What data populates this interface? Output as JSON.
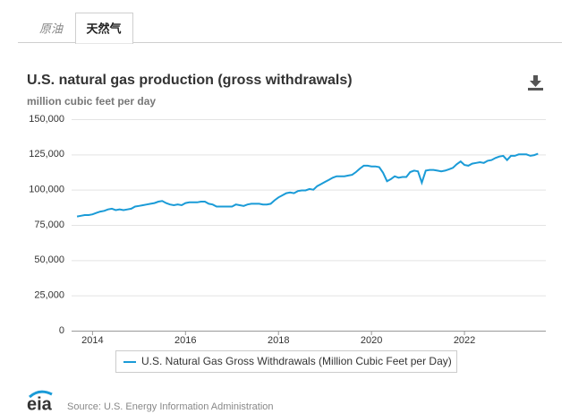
{
  "tabs": [
    "原油",
    "天然气"
  ],
  "logo": "eia",
  "chart_data": {
    "type": "line",
    "title": "U.S. natural gas production (gross withdrawals)",
    "subtitle": "million cubic feet per day",
    "source": "Source: U.S. Energy Information Administration",
    "x": [
      2013.667,
      2013.75,
      2013.833,
      2013.917,
      2014,
      2014.083,
      2014.167,
      2014.25,
      2014.333,
      2014.417,
      2014.5,
      2014.583,
      2014.667,
      2014.75,
      2014.833,
      2014.917,
      2015,
      2015.083,
      2015.167,
      2015.25,
      2015.333,
      2015.417,
      2015.5,
      2015.583,
      2015.667,
      2015.75,
      2015.833,
      2015.917,
      2016,
      2016.083,
      2016.167,
      2016.25,
      2016.333,
      2016.417,
      2016.5,
      2016.583,
      2016.667,
      2016.75,
      2016.833,
      2016.917,
      2017,
      2017.083,
      2017.167,
      2017.25,
      2017.333,
      2017.417,
      2017.5,
      2017.583,
      2017.667,
      2017.75,
      2017.833,
      2017.917,
      2018,
      2018.083,
      2018.167,
      2018.25,
      2018.333,
      2018.417,
      2018.5,
      2018.583,
      2018.667,
      2018.75,
      2018.833,
      2018.917,
      2019,
      2019.083,
      2019.167,
      2019.25,
      2019.333,
      2019.417,
      2019.5,
      2019.583,
      2019.667,
      2019.75,
      2019.833,
      2019.917,
      2020,
      2020.083,
      2020.167,
      2020.25,
      2020.333,
      2020.417,
      2020.5,
      2020.583,
      2020.667,
      2020.75,
      2020.833,
      2020.917,
      2021,
      2021.083,
      2021.167,
      2021.25,
      2021.333,
      2021.417,
      2021.5,
      2021.583,
      2021.667,
      2021.75,
      2021.833,
      2021.917,
      2022,
      2022.083,
      2022.167,
      2022.25,
      2022.333,
      2022.417,
      2022.5,
      2022.583,
      2022.667,
      2022.75,
      2022.833,
      2022.917,
      2023,
      2023.083,
      2023.167,
      2023.25,
      2023.333,
      2023.417,
      2023.5,
      2023.583
    ],
    "series": [
      {
        "name": "U.S. Natural Gas Gross Withdrawals (Million Cubic Feet per Day)",
        "color": "#1a9bd7",
        "values": [
          81000,
          81500,
          82000,
          82000,
          82500,
          83500,
          84500,
          85000,
          86000,
          86500,
          85500,
          86000,
          85500,
          86000,
          86500,
          88000,
          88500,
          89000,
          89500,
          90000,
          90500,
          91500,
          92000,
          90500,
          89500,
          89000,
          89500,
          89000,
          90500,
          91000,
          91000,
          91000,
          91500,
          91500,
          90000,
          89500,
          88000,
          88000,
          88000,
          88000,
          88000,
          89500,
          89000,
          88500,
          89500,
          90000,
          90000,
          90000,
          89500,
          89500,
          90000,
          92500,
          94500,
          96000,
          97500,
          98000,
          97500,
          99000,
          99500,
          99500,
          100500,
          100000,
          102500,
          104000,
          105500,
          107000,
          108500,
          109500,
          109500,
          109500,
          110000,
          110500,
          112500,
          115000,
          117000,
          117000,
          116500,
          116500,
          116000,
          112000,
          106000,
          107500,
          109500,
          108500,
          109000,
          109000,
          112500,
          113500,
          113000,
          105000,
          113500,
          114000,
          114000,
          113500,
          113000,
          113500,
          114500,
          115500,
          118000,
          120000,
          117500,
          117000,
          118500,
          119000,
          119500,
          119000,
          120500,
          121000,
          122500,
          123500,
          124000,
          121000,
          124000,
          124000,
          125000,
          125000,
          125000,
          124000,
          124500,
          125500
        ]
      }
    ],
    "xlim": [
      2013.55,
      2023.75
    ],
    "xticks": [
      2014,
      2016,
      2018,
      2020,
      2022
    ],
    "ylim": [
      0,
      150000
    ],
    "yticks": [
      0,
      {
        "value": 25000,
        "label": "25,000"
      },
      {
        "value": 50000,
        "label": "50,000"
      },
      {
        "value": 75000,
        "label": "75,000"
      },
      {
        "value": 100000,
        "label": "100,000"
      },
      {
        "value": 125000,
        "label": "125,000"
      },
      {
        "value": 150000,
        "label": "150,000"
      }
    ],
    "grid": true
  }
}
